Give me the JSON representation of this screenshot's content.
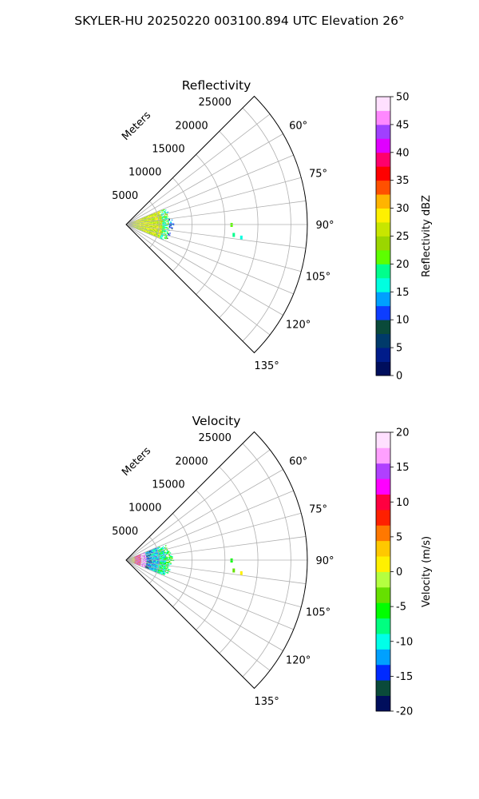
{
  "suptitle": "SKYLER-HU  20250220  003100.894 UTC Elevation 26°",
  "chart_data": [
    {
      "type": "heatmap",
      "subtype": "radar-ppi-sector",
      "title": "Reflectivity",
      "r_label": "Meters",
      "r_ticks": [
        "5000",
        "10000",
        "15000",
        "20000",
        "25000"
      ],
      "r_max": 27500,
      "theta_range_deg": [
        45,
        135
      ],
      "theta_ticks": [
        "60°",
        "75°",
        "90°",
        "105°",
        "120°",
        "135°"
      ],
      "colorbar": {
        "label": "Reflectivity dBZ",
        "range": [
          0,
          50
        ],
        "ticks": [
          "0",
          "5",
          "10",
          "15",
          "20",
          "25",
          "30",
          "35",
          "40",
          "45",
          "50"
        ]
      },
      "echo_region": {
        "azimuth_range_deg": [
          67,
          112
        ],
        "max_range_m": 7000,
        "dominant_values": "15-30 dBZ",
        "zones": [
          {
            "r_from": 0,
            "r_to": 1500,
            "value": 25
          },
          {
            "r_from": 1500,
            "r_to": 5500,
            "value": 26
          },
          {
            "r_from": 5500,
            "r_to": 6500,
            "value": 19
          },
          {
            "r_from": 6500,
            "r_to": 7000,
            "value": 13
          }
        ],
        "isolated_echoes": [
          {
            "theta": 90.2,
            "r": 16000,
            "value": 22
          },
          {
            "theta": 95.5,
            "r": 16400,
            "value": 18
          },
          {
            "theta": 96.5,
            "r": 17600,
            "value": 17
          }
        ]
      }
    },
    {
      "type": "heatmap",
      "subtype": "radar-ppi-sector",
      "title": "Velocity",
      "r_label": "Meters",
      "r_ticks": [
        "5000",
        "10000",
        "15000",
        "20000",
        "25000"
      ],
      "r_max": 27500,
      "theta_range_deg": [
        45,
        135
      ],
      "theta_ticks": [
        "60°",
        "75°",
        "90°",
        "105°",
        "120°",
        "135°"
      ],
      "colorbar": {
        "label": "Velocity (m/s)",
        "range": [
          -20,
          20
        ],
        "ticks": [
          "-20",
          "-15",
          "-10",
          "-5",
          "0",
          "5",
          "10",
          "15",
          "20"
        ]
      },
      "echo_region": {
        "azimuth_range_deg": [
          67,
          112
        ],
        "max_range_m": 7000,
        "dominant_values": "-10 to 10 m/s, folded bands",
        "zones": [
          {
            "r_from": 0,
            "r_to": 1200,
            "value": 1
          },
          {
            "r_from": 1200,
            "r_to": 2200,
            "value": 10
          },
          {
            "r_from": 2200,
            "r_to": 3000,
            "value": 17
          },
          {
            "r_from": 3000,
            "r_to": 3800,
            "value": -14
          },
          {
            "r_from": 3800,
            "r_to": 5000,
            "value": -11
          },
          {
            "r_from": 5000,
            "r_to": 6000,
            "value": -8
          },
          {
            "r_from": 6000,
            "r_to": 7000,
            "value": -6
          }
        ],
        "isolated_echoes": [
          {
            "theta": 90.2,
            "r": 16000,
            "value": -6
          },
          {
            "theta": 95.5,
            "r": 16400,
            "value": -4
          },
          {
            "theta": 96.5,
            "r": 17600,
            "value": 2
          }
        ]
      }
    }
  ],
  "colors": {
    "reflectivity": [
      "#000e5c",
      "#001c8a",
      "#003a6a",
      "#0a4a3a",
      "#0d3dff",
      "#00a0ff",
      "#00ffe0",
      "#00ff8c",
      "#5dff00",
      "#9bd600",
      "#c8e600",
      "#fff000",
      "#ffb400",
      "#ff5000",
      "#ff0000",
      "#ff006c",
      "#e000ff",
      "#a040ff",
      "#ff88ff",
      "#ffe0ff"
    ],
    "velocity": [
      "#000e5c",
      "#0a4a3a",
      "#002aff",
      "#00a0ff",
      "#00ffe8",
      "#00ff80",
      "#00ff00",
      "#66e000",
      "#b4ff40",
      "#fff000",
      "#ffc800",
      "#ff7800",
      "#ff2000",
      "#ff0040",
      "#ff00ff",
      "#b040ff",
      "#ffa0ff",
      "#ffe0ff"
    ]
  }
}
